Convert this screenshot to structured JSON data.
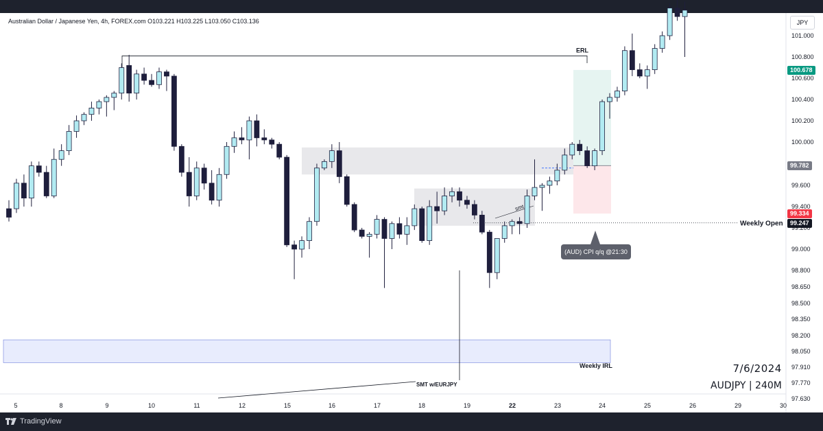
{
  "header": {
    "legend": "Australian Dollar / Japanese Yen, 4h, FOREX.com  O103.221  H103.225  L103.050  C103.136",
    "currency": "JPY"
  },
  "footer": {
    "brand": "TradingView"
  },
  "annotations": {
    "date": "7/6/2024",
    "symbol": "AUDJPY | 240M",
    "erl": "ERL",
    "weekly_open": "Weekly Open",
    "weekly_irl": "Weekly IRL",
    "smt": "smt",
    "smt_eurjpy": "SMT w/EURJPY",
    "cpi_event": "(AUD) CPI q/q @21:30"
  },
  "price_labels": {
    "current": "100.678",
    "entry": "99.782",
    "stop": "99.334",
    "weekly_open": "99.247"
  },
  "colors": {
    "bull_body": "#b2ebf2",
    "bear_body": "#1e1e3c",
    "wick": "#1e1e3c",
    "current_price": "#089981",
    "stop": "#f23645",
    "entry": "#787b86",
    "irl_zone": "#e8ecfd",
    "target_zone": "#e6f4f1",
    "stop_zone": "#fde7ea"
  },
  "chart_data": {
    "type": "candlestick",
    "title": "Australian Dollar / Japanese Yen, 4h, FOREX.com",
    "y_axis_ticks": [
      101.0,
      100.8,
      100.6,
      100.4,
      100.2,
      100.0,
      99.6,
      99.4,
      99.2,
      99.0,
      98.8,
      98.65,
      98.5,
      98.35,
      98.2,
      98.05,
      97.91,
      97.77,
      97.63
    ],
    "y_axis_labels": [
      "101.000",
      "100.800",
      "100.600",
      "100.400",
      "100.200",
      "100.000",
      "99.600",
      "99.400",
      "99.200",
      "99.000",
      "98.800",
      "98.650",
      "98.500",
      "98.350",
      "98.200",
      "98.050",
      "97.910",
      "97.770",
      "97.630"
    ],
    "x_axis_labels": [
      "5",
      "8",
      "9",
      "10",
      "11",
      "12",
      "15",
      "16",
      "17",
      "18",
      "19",
      "22",
      "23",
      "24",
      "25",
      "26",
      "29",
      "30"
    ],
    "bold_x_labels": [
      "22"
    ],
    "candles": [
      {
        "o": 99.38,
        "h": 99.46,
        "l": 99.26,
        "c": 99.3
      },
      {
        "o": 99.38,
        "h": 99.66,
        "l": 99.34,
        "c": 99.62
      },
      {
        "o": 99.62,
        "h": 99.7,
        "l": 99.4,
        "c": 99.48
      },
      {
        "o": 99.48,
        "h": 99.82,
        "l": 99.4,
        "c": 99.78
      },
      {
        "o": 99.78,
        "h": 99.82,
        "l": 99.68,
        "c": 99.72
      },
      {
        "o": 99.72,
        "h": 99.78,
        "l": 99.48,
        "c": 99.5
      },
      {
        "o": 99.5,
        "h": 99.94,
        "l": 99.48,
        "c": 99.84
      },
      {
        "o": 99.84,
        "h": 99.98,
        "l": 99.78,
        "c": 99.92
      },
      {
        "o": 99.92,
        "h": 100.16,
        "l": 99.88,
        "c": 100.1
      },
      {
        "o": 100.1,
        "h": 100.25,
        "l": 100.04,
        "c": 100.2
      },
      {
        "o": 100.2,
        "h": 100.28,
        "l": 100.16,
        "c": 100.26
      },
      {
        "o": 100.26,
        "h": 100.38,
        "l": 100.2,
        "c": 100.32
      },
      {
        "o": 100.32,
        "h": 100.4,
        "l": 100.26,
        "c": 100.38
      },
      {
        "o": 100.38,
        "h": 100.44,
        "l": 100.24,
        "c": 100.42
      },
      {
        "o": 100.42,
        "h": 100.48,
        "l": 100.3,
        "c": 100.46
      },
      {
        "o": 100.46,
        "h": 100.74,
        "l": 100.4,
        "c": 100.7
      },
      {
        "o": 100.72,
        "h": 100.82,
        "l": 100.38,
        "c": 100.46
      },
      {
        "o": 100.46,
        "h": 100.68,
        "l": 100.4,
        "c": 100.64
      },
      {
        "o": 100.64,
        "h": 100.7,
        "l": 100.54,
        "c": 100.58
      },
      {
        "o": 100.58,
        "h": 100.64,
        "l": 100.52,
        "c": 100.54
      },
      {
        "o": 100.54,
        "h": 100.7,
        "l": 100.5,
        "c": 100.66
      },
      {
        "o": 100.66,
        "h": 100.68,
        "l": 100.48,
        "c": 100.62
      },
      {
        "o": 100.62,
        "h": 100.64,
        "l": 99.92,
        "c": 99.96
      },
      {
        "o": 99.96,
        "h": 99.98,
        "l": 99.68,
        "c": 99.72
      },
      {
        "o": 99.72,
        "h": 99.86,
        "l": 99.4,
        "c": 99.5
      },
      {
        "o": 99.5,
        "h": 99.82,
        "l": 99.46,
        "c": 99.76
      },
      {
        "o": 99.76,
        "h": 99.8,
        "l": 99.56,
        "c": 99.62
      },
      {
        "o": 99.62,
        "h": 99.74,
        "l": 99.42,
        "c": 99.46
      },
      {
        "o": 99.46,
        "h": 99.76,
        "l": 99.4,
        "c": 99.7
      },
      {
        "o": 99.7,
        "h": 100.0,
        "l": 99.66,
        "c": 99.96
      },
      {
        "o": 99.96,
        "h": 100.1,
        "l": 99.9,
        "c": 100.04
      },
      {
        "o": 100.04,
        "h": 100.14,
        "l": 99.98,
        "c": 100.02
      },
      {
        "o": 100.02,
        "h": 100.24,
        "l": 99.84,
        "c": 100.2
      },
      {
        "o": 100.2,
        "h": 100.26,
        "l": 99.96,
        "c": 100.04
      },
      {
        "o": 100.04,
        "h": 100.12,
        "l": 99.98,
        "c": 100.02
      },
      {
        "o": 100.02,
        "h": 100.04,
        "l": 99.94,
        "c": 99.98
      },
      {
        "o": 99.98,
        "h": 100.0,
        "l": 99.84,
        "c": 99.86
      },
      {
        "o": 99.86,
        "h": 99.88,
        "l": 99.02,
        "c": 99.04
      },
      {
        "o": 99.04,
        "h": 99.08,
        "l": 98.72,
        "c": 99.0
      },
      {
        "o": 99.0,
        "h": 99.12,
        "l": 98.92,
        "c": 99.08
      },
      {
        "o": 99.08,
        "h": 99.3,
        "l": 99.0,
        "c": 99.26
      },
      {
        "o": 99.26,
        "h": 99.8,
        "l": 99.22,
        "c": 99.76
      },
      {
        "o": 99.76,
        "h": 99.84,
        "l": 99.74,
        "c": 99.82
      },
      {
        "o": 99.82,
        "h": 99.98,
        "l": 99.76,
        "c": 99.92
      },
      {
        "o": 99.92,
        "h": 100.0,
        "l": 99.62,
        "c": 99.68
      },
      {
        "o": 99.68,
        "h": 99.7,
        "l": 99.4,
        "c": 99.42
      },
      {
        "o": 99.42,
        "h": 99.44,
        "l": 99.16,
        "c": 99.18
      },
      {
        "o": 99.18,
        "h": 99.2,
        "l": 99.1,
        "c": 99.12
      },
      {
        "o": 99.12,
        "h": 99.16,
        "l": 98.92,
        "c": 99.14
      },
      {
        "o": 99.14,
        "h": 99.32,
        "l": 99.1,
        "c": 99.28
      },
      {
        "o": 99.28,
        "h": 99.3,
        "l": 98.64,
        "c": 99.1
      },
      {
        "o": 99.1,
        "h": 99.26,
        "l": 99.0,
        "c": 99.24
      },
      {
        "o": 99.24,
        "h": 99.3,
        "l": 99.1,
        "c": 99.14
      },
      {
        "o": 99.14,
        "h": 99.3,
        "l": 99.04,
        "c": 99.22
      },
      {
        "o": 99.22,
        "h": 99.42,
        "l": 99.18,
        "c": 99.38
      },
      {
        "o": 99.38,
        "h": 99.4,
        "l": 99.06,
        "c": 99.08
      },
      {
        "o": 99.08,
        "h": 99.46,
        "l": 99.04,
        "c": 99.4
      },
      {
        "o": 99.4,
        "h": 99.54,
        "l": 99.24,
        "c": 99.36
      },
      {
        "o": 99.36,
        "h": 99.58,
        "l": 99.32,
        "c": 99.5
      },
      {
        "o": 99.5,
        "h": 99.58,
        "l": 99.44,
        "c": 99.54
      },
      {
        "o": 99.54,
        "h": 99.58,
        "l": 99.4,
        "c": 99.46
      },
      {
        "o": 99.46,
        "h": 99.5,
        "l": 99.38,
        "c": 99.42
      },
      {
        "o": 99.42,
        "h": 99.46,
        "l": 99.28,
        "c": 99.32
      },
      {
        "o": 99.32,
        "h": 99.36,
        "l": 99.14,
        "c": 99.16
      },
      {
        "o": 99.16,
        "h": 99.18,
        "l": 98.64,
        "c": 98.78
      },
      {
        "o": 98.78,
        "h": 99.1,
        "l": 98.72,
        "c": 99.1
      },
      {
        "o": 99.1,
        "h": 99.26,
        "l": 99.06,
        "c": 99.22
      },
      {
        "o": 99.22,
        "h": 99.28,
        "l": 99.14,
        "c": 99.26
      },
      {
        "o": 99.26,
        "h": 99.3,
        "l": 99.14,
        "c": 99.24
      },
      {
        "o": 99.24,
        "h": 99.56,
        "l": 99.2,
        "c": 99.5
      },
      {
        "o": 99.5,
        "h": 99.84,
        "l": 99.46,
        "c": 99.58
      },
      {
        "o": 99.58,
        "h": 99.62,
        "l": 99.36,
        "c": 99.6
      },
      {
        "o": 99.6,
        "h": 99.68,
        "l": 99.52,
        "c": 99.64
      },
      {
        "o": 99.64,
        "h": 99.8,
        "l": 99.6,
        "c": 99.74
      },
      {
        "o": 99.74,
        "h": 99.94,
        "l": 99.7,
        "c": 99.88
      },
      {
        "o": 99.88,
        "h": 100.0,
        "l": 99.84,
        "c": 99.98
      },
      {
        "o": 99.98,
        "h": 100.02,
        "l": 99.88,
        "c": 99.92
      },
      {
        "o": 99.92,
        "h": 99.96,
        "l": 99.76,
        "c": 99.78
      },
      {
        "o": 99.78,
        "h": 99.94,
        "l": 99.74,
        "c": 99.92
      },
      {
        "o": 99.92,
        "h": 100.4,
        "l": 99.88,
        "c": 100.38
      },
      {
        "o": 100.38,
        "h": 100.46,
        "l": 100.22,
        "c": 100.42
      },
      {
        "o": 100.42,
        "h": 100.52,
        "l": 100.38,
        "c": 100.48
      },
      {
        "o": 100.48,
        "h": 100.9,
        "l": 100.44,
        "c": 100.86
      },
      {
        "o": 100.86,
        "h": 101.02,
        "l": 100.62,
        "c": 100.68
      },
      {
        "o": 100.68,
        "h": 100.74,
        "l": 100.6,
        "c": 100.62
      },
      {
        "o": 100.62,
        "h": 100.72,
        "l": 100.5,
        "c": 100.68
      },
      {
        "o": 100.68,
        "h": 100.92,
        "l": 100.64,
        "c": 100.88
      },
      {
        "o": 100.88,
        "h": 101.04,
        "l": 100.84,
        "c": 101.0
      },
      {
        "o": 101.0,
        "h": 101.3,
        "l": 100.96,
        "c": 101.26
      },
      {
        "o": 101.26,
        "h": 101.34,
        "l": 101.14,
        "c": 101.18
      },
      {
        "o": 101.18,
        "h": 101.32,
        "l": 100.8,
        "c": 101.24
      }
    ],
    "levels": [
      {
        "name": "ERL",
        "price": 100.81
      },
      {
        "name": "Weekly Open",
        "price": 99.247
      },
      {
        "name": "Entry",
        "price": 99.782
      }
    ],
    "zones": [
      {
        "name": "Weekly IRL",
        "from": 97.95,
        "to": 98.16
      },
      {
        "name": "upper imbalance",
        "from": 99.7,
        "to": 99.95
      },
      {
        "name": "lower imbalance",
        "from": 99.22,
        "to": 99.57
      },
      {
        "name": "target",
        "from": 99.782,
        "to": 100.678
      },
      {
        "name": "stop",
        "from": 99.334,
        "to": 99.782
      }
    ]
  }
}
